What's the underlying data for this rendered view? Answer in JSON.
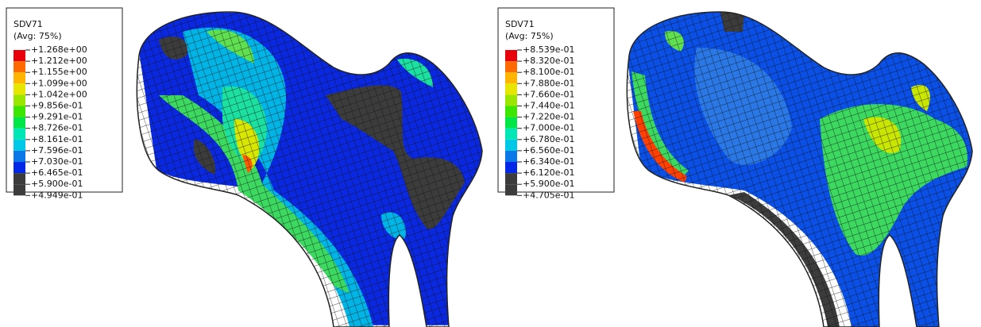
{
  "panels": [
    {
      "legend": {
        "title": "SDV71",
        "subtitle": "(Avg: 75%)",
        "levels": [
          "+1.268e+00",
          "+1.212e+00",
          "+1.155e+00",
          "+1.099e+00",
          "+1.042e+00",
          "+9.856e-01",
          "+9.291e-01",
          "+8.726e-01",
          "+8.161e-01",
          "+7.596e-01",
          "+7.030e-01",
          "+6.465e-01",
          "+5.900e-01",
          "+4.949e-01"
        ]
      }
    },
    {
      "legend": {
        "title": "SDV71",
        "subtitle": "(Avg: 75%)",
        "levels": [
          "+8.539e-01",
          "+8.320e-01",
          "+8.100e-01",
          "+7.880e-01",
          "+7.660e-01",
          "+7.440e-01",
          "+7.220e-01",
          "+7.000e-01",
          "+6.780e-01",
          "+6.560e-01",
          "+6.340e-01",
          "+6.120e-01",
          "+5.900e-01",
          "+4.705e-01"
        ]
      }
    }
  ]
}
